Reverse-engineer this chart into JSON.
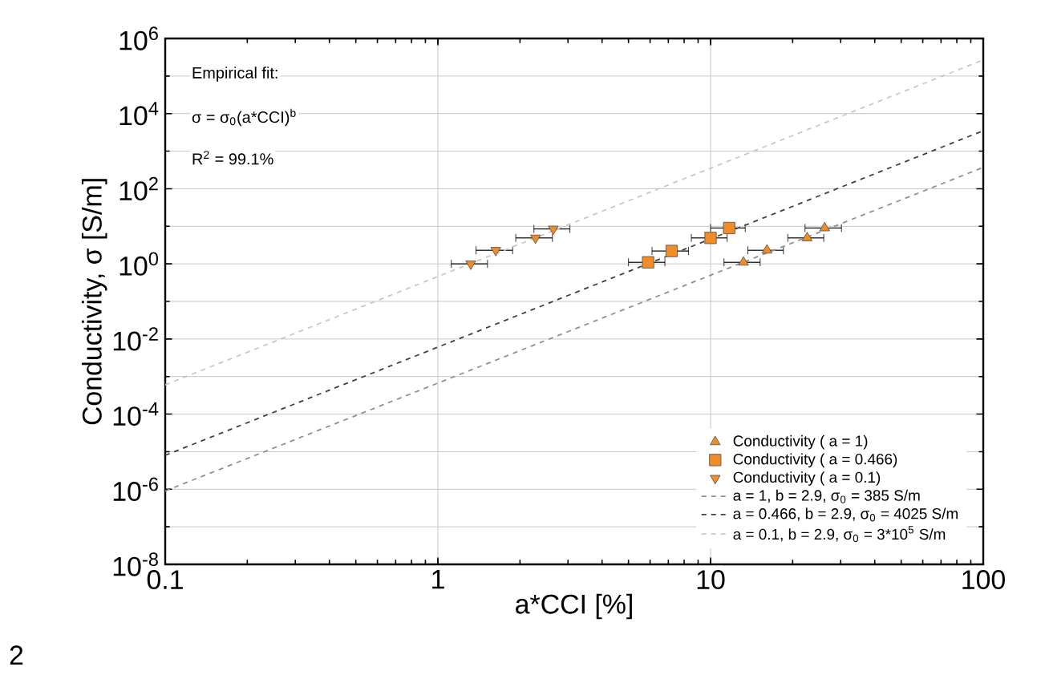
{
  "chart_data": {
    "type": "scatter",
    "xlabel": "a*CCI [%]",
    "ylabel": "Conductivity, σ [S/m]",
    "log": "xy",
    "xlim": [
      0.1,
      100
    ],
    "ylim": [
      1e-08,
      1000000.0
    ],
    "xticks": [
      0.1,
      1,
      10,
      100
    ],
    "yticks": [
      {
        "value": 1e-08,
        "label": "10$^{-8}$"
      },
      {
        "value": 1e-06,
        "label": "10$^{-6}$"
      },
      {
        "value": 0.0001,
        "label": "10$^{-4}$"
      },
      {
        "value": 0.01,
        "label": "10$^{-2}$"
      },
      {
        "value": 1,
        "label": "10$^{0}$"
      },
      {
        "value": 100,
        "label": "10$^{2}$"
      },
      {
        "value": 10000,
        "label": "10$^{4}$"
      },
      {
        "value": 1000000,
        "label": "10$^{6}$"
      }
    ],
    "grid": true,
    "legend": "bottom right",
    "series": [
      {
        "name": "Conductivity ( a = 1)",
        "color": "#f28c28",
        "marker": "triangle",
        "x": [
          13.2,
          16.1,
          22.6,
          26.2
        ],
        "values": [
          1.1,
          2.3,
          4.9,
          9
        ],
        "xerrors": [
          2,
          2.4,
          3.4,
          4
        ]
      },
      {
        "name": "Conductivity ( a = 0.466)",
        "color": "#f28c28",
        "marker": "square",
        "x": [
          5.9,
          7.2,
          10,
          11.7
        ],
        "values": [
          1.1,
          2.2,
          4.9,
          9
        ],
        "xerrors": [
          0.9,
          1.1,
          1.5,
          1.7
        ]
      },
      {
        "name": "Conductivity ( a = 0.1)",
        "color": "#f28c28",
        "marker": "triangle-down",
        "x": [
          1.32,
          1.63,
          2.28,
          2.65
        ],
        "values": [
          1,
          2.3,
          4.9,
          8.5
        ],
        "xerrors": [
          0.2,
          0.25,
          0.35,
          0.4
        ]
      },
      {
        "name": "a = 1, b = 2.9, σ$_{0}$ = 385 S/m",
        "type": "line",
        "color": "#909090",
        "marker": "none",
        "line_style": "dashed",
        "x": [
          0.1,
          100
        ],
        "values": [
          9e-07,
          370
        ]
      },
      {
        "name": "a = 0.466, b = 2.9, σ$_{0}$ = 4025 S/m",
        "type": "line",
        "color": "#404040",
        "marker": "none",
        "line_style": "dashed",
        "x": [
          0.1,
          100
        ],
        "values": [
          8e-06,
          3500
        ]
      },
      {
        "name": "a = 0.1, b = 2.9, σ$_{0}$ = 3*10$^{5}$ S/m",
        "type": "line",
        "color": "#c8c8c8",
        "marker": "none",
        "line_style": "dashed",
        "x": [
          0.1,
          100
        ],
        "values": [
          0.0006,
          270000
        ]
      }
    ],
    "annotations": [
      "Empirical fit:",
      "σ = σ$_{0}$(a*CCI)$^{b}$",
      "R$^{2}$ = 99.1%",
      "2"
    ]
  }
}
